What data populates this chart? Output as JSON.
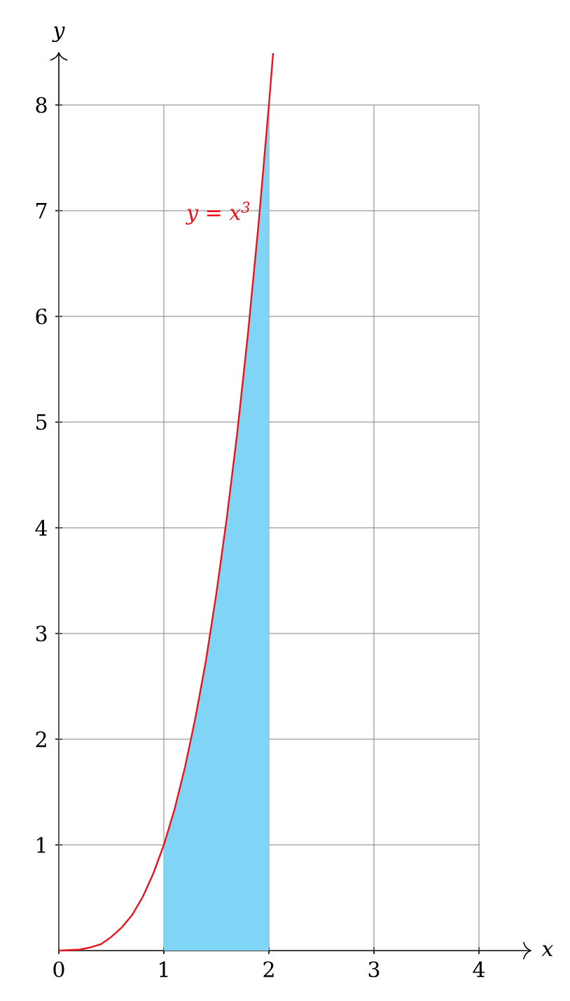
{
  "chart_data": {
    "type": "line",
    "xlabel": "x",
    "ylabel": "y",
    "xlim": [
      0,
      4.5
    ],
    "ylim": [
      0,
      8.5
    ],
    "xticks": [
      0,
      1,
      2,
      3,
      4
    ],
    "yticks": [
      1,
      2,
      3,
      4,
      5,
      6,
      7,
      8
    ],
    "grid": true,
    "marker": "none",
    "line_style": "solid",
    "series": [
      {
        "type": "area",
        "color": "#80d4f5",
        "x": [
          1,
          1.1,
          1.2,
          1.3,
          1.4,
          1.5,
          1.6,
          1.7,
          1.8,
          1.9,
          2
        ],
        "values": [
          1,
          1.33,
          1.73,
          2.2,
          2.74,
          3.38,
          4.1,
          4.91,
          5.83,
          6.86,
          8
        ]
      },
      {
        "name": "*y* = *x*$^{3}$",
        "color": "#e8141c",
        "x": [
          0,
          0.2,
          0.3,
          0.4,
          0.5,
          0.6,
          0.7,
          0.8,
          0.9,
          1,
          1.1,
          1.2,
          1.3,
          1.4,
          1.5,
          1.6,
          1.7,
          1.8,
          1.9,
          2,
          2.04
        ],
        "values": [
          0,
          0.01,
          0.03,
          0.06,
          0.13,
          0.22,
          0.34,
          0.51,
          0.73,
          1,
          1.33,
          1.73,
          2.2,
          2.74,
          3.38,
          4.1,
          4.91,
          5.83,
          6.86,
          8,
          8.49
        ]
      }
    ]
  }
}
